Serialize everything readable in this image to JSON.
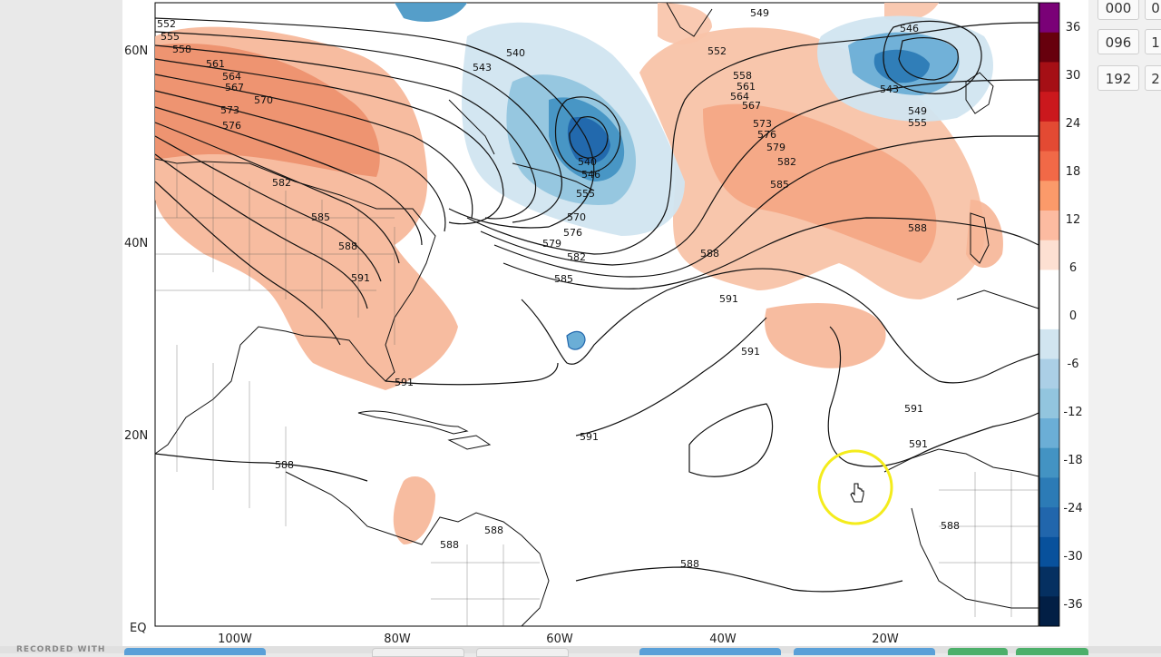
{
  "map": {
    "lat_labels": [
      "60N",
      "40N",
      "20N",
      "EQ"
    ],
    "lon_labels": [
      "100W",
      "80W",
      "60W",
      "40W",
      "20W"
    ]
  },
  "contours": {
    "labels_nw": [
      "552",
      "555",
      "558",
      "561",
      "564",
      "567",
      "570",
      "573",
      "576"
    ],
    "label_540": "540",
    "label_543": "543",
    "label_549": "549",
    "label_546": "546",
    "label_552": "552",
    "label_558": "558",
    "label_561": "561",
    "label_564": "564",
    "label_567": "567",
    "label_573": "573",
    "label_576": "576",
    "label_579": "579",
    "label_582": "582",
    "label_585": "585",
    "label_588": "588",
    "label_591": "591",
    "label_555": "555",
    "label_570": "570"
  },
  "colorbar": {
    "ticks": [
      "36",
      "30",
      "24",
      "18",
      "12",
      "6",
      "0",
      "-6",
      "-12",
      "-18",
      "-24",
      "-30",
      "-36"
    ],
    "colors": [
      "#7a0177",
      "#67000d",
      "#a50f15",
      "#cb181d",
      "#e34a33",
      "#f16947",
      "#fb9a6a",
      "#fcbba1",
      "#fde0d2",
      "#ffffff",
      "#ffffff",
      "#d1e5f0",
      "#abcfe6",
      "#92c5de",
      "#6baed6",
      "#4393c3",
      "#2c7bb6",
      "#2166ac",
      "#08519c",
      "#053061",
      "#021f45"
    ]
  },
  "forecast_hours": [
    "000",
    "096",
    "192",
    "0",
    "1",
    "2"
  ],
  "recording": {
    "label": "RECORDED WITH"
  }
}
